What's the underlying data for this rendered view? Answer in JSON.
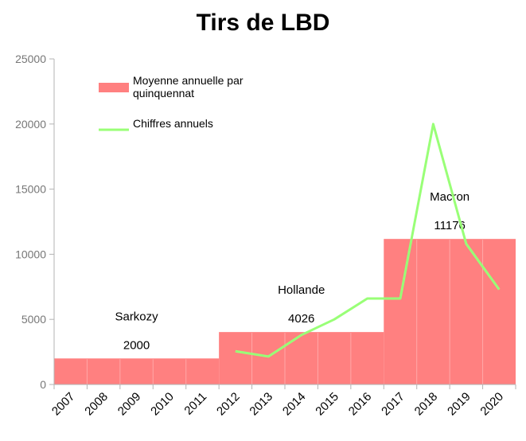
{
  "chart_data": {
    "type": "bar",
    "title": "Tirs de LBD",
    "x": [
      "2007",
      "2008",
      "2009",
      "2010",
      "2011",
      "2012",
      "2013",
      "2014",
      "2015",
      "2016",
      "2017",
      "2018",
      "2019",
      "2020"
    ],
    "ylim": [
      0,
      25000
    ],
    "yticks": [
      0,
      5000,
      10000,
      15000,
      20000,
      25000
    ],
    "grid": false,
    "legend": "top-left",
    "legend_entries": [
      {
        "label": "Moyenne annuelle par quinquennat",
        "color": "#ff8080",
        "type": "bar"
      },
      {
        "label": "Chiffres annuels",
        "color": "#99ff77",
        "type": "line"
      }
    ],
    "series": [
      {
        "name": "Moyenne annuelle par quinquennat",
        "type": "bar",
        "color": "#ff8080",
        "periods": [
          {
            "president": "Sarkozy",
            "label": "2000",
            "start": 2007,
            "end": 2012,
            "value": 2000
          },
          {
            "president": "Hollande",
            "label": "4026",
            "start": 2012,
            "end": 2017,
            "value": 4026
          },
          {
            "president": "Macron",
            "label": "11176",
            "start": 2017,
            "end": 2021,
            "value": 11176
          }
        ]
      },
      {
        "name": "Chiffres annuels",
        "type": "line",
        "color": "#99ff77",
        "points": [
          {
            "x": "2012",
            "y": 2550
          },
          {
            "x": "2013",
            "y": 2150
          },
          {
            "x": "2014",
            "y": 3800
          },
          {
            "x": "2015",
            "y": 5000
          },
          {
            "x": "2016",
            "y": 6600
          },
          {
            "x": "2017",
            "y": 6600
          },
          {
            "x": "2018",
            "y": 20000
          },
          {
            "x": "2019",
            "y": 10800
          },
          {
            "x": "2020",
            "y": 7300
          }
        ]
      }
    ]
  }
}
